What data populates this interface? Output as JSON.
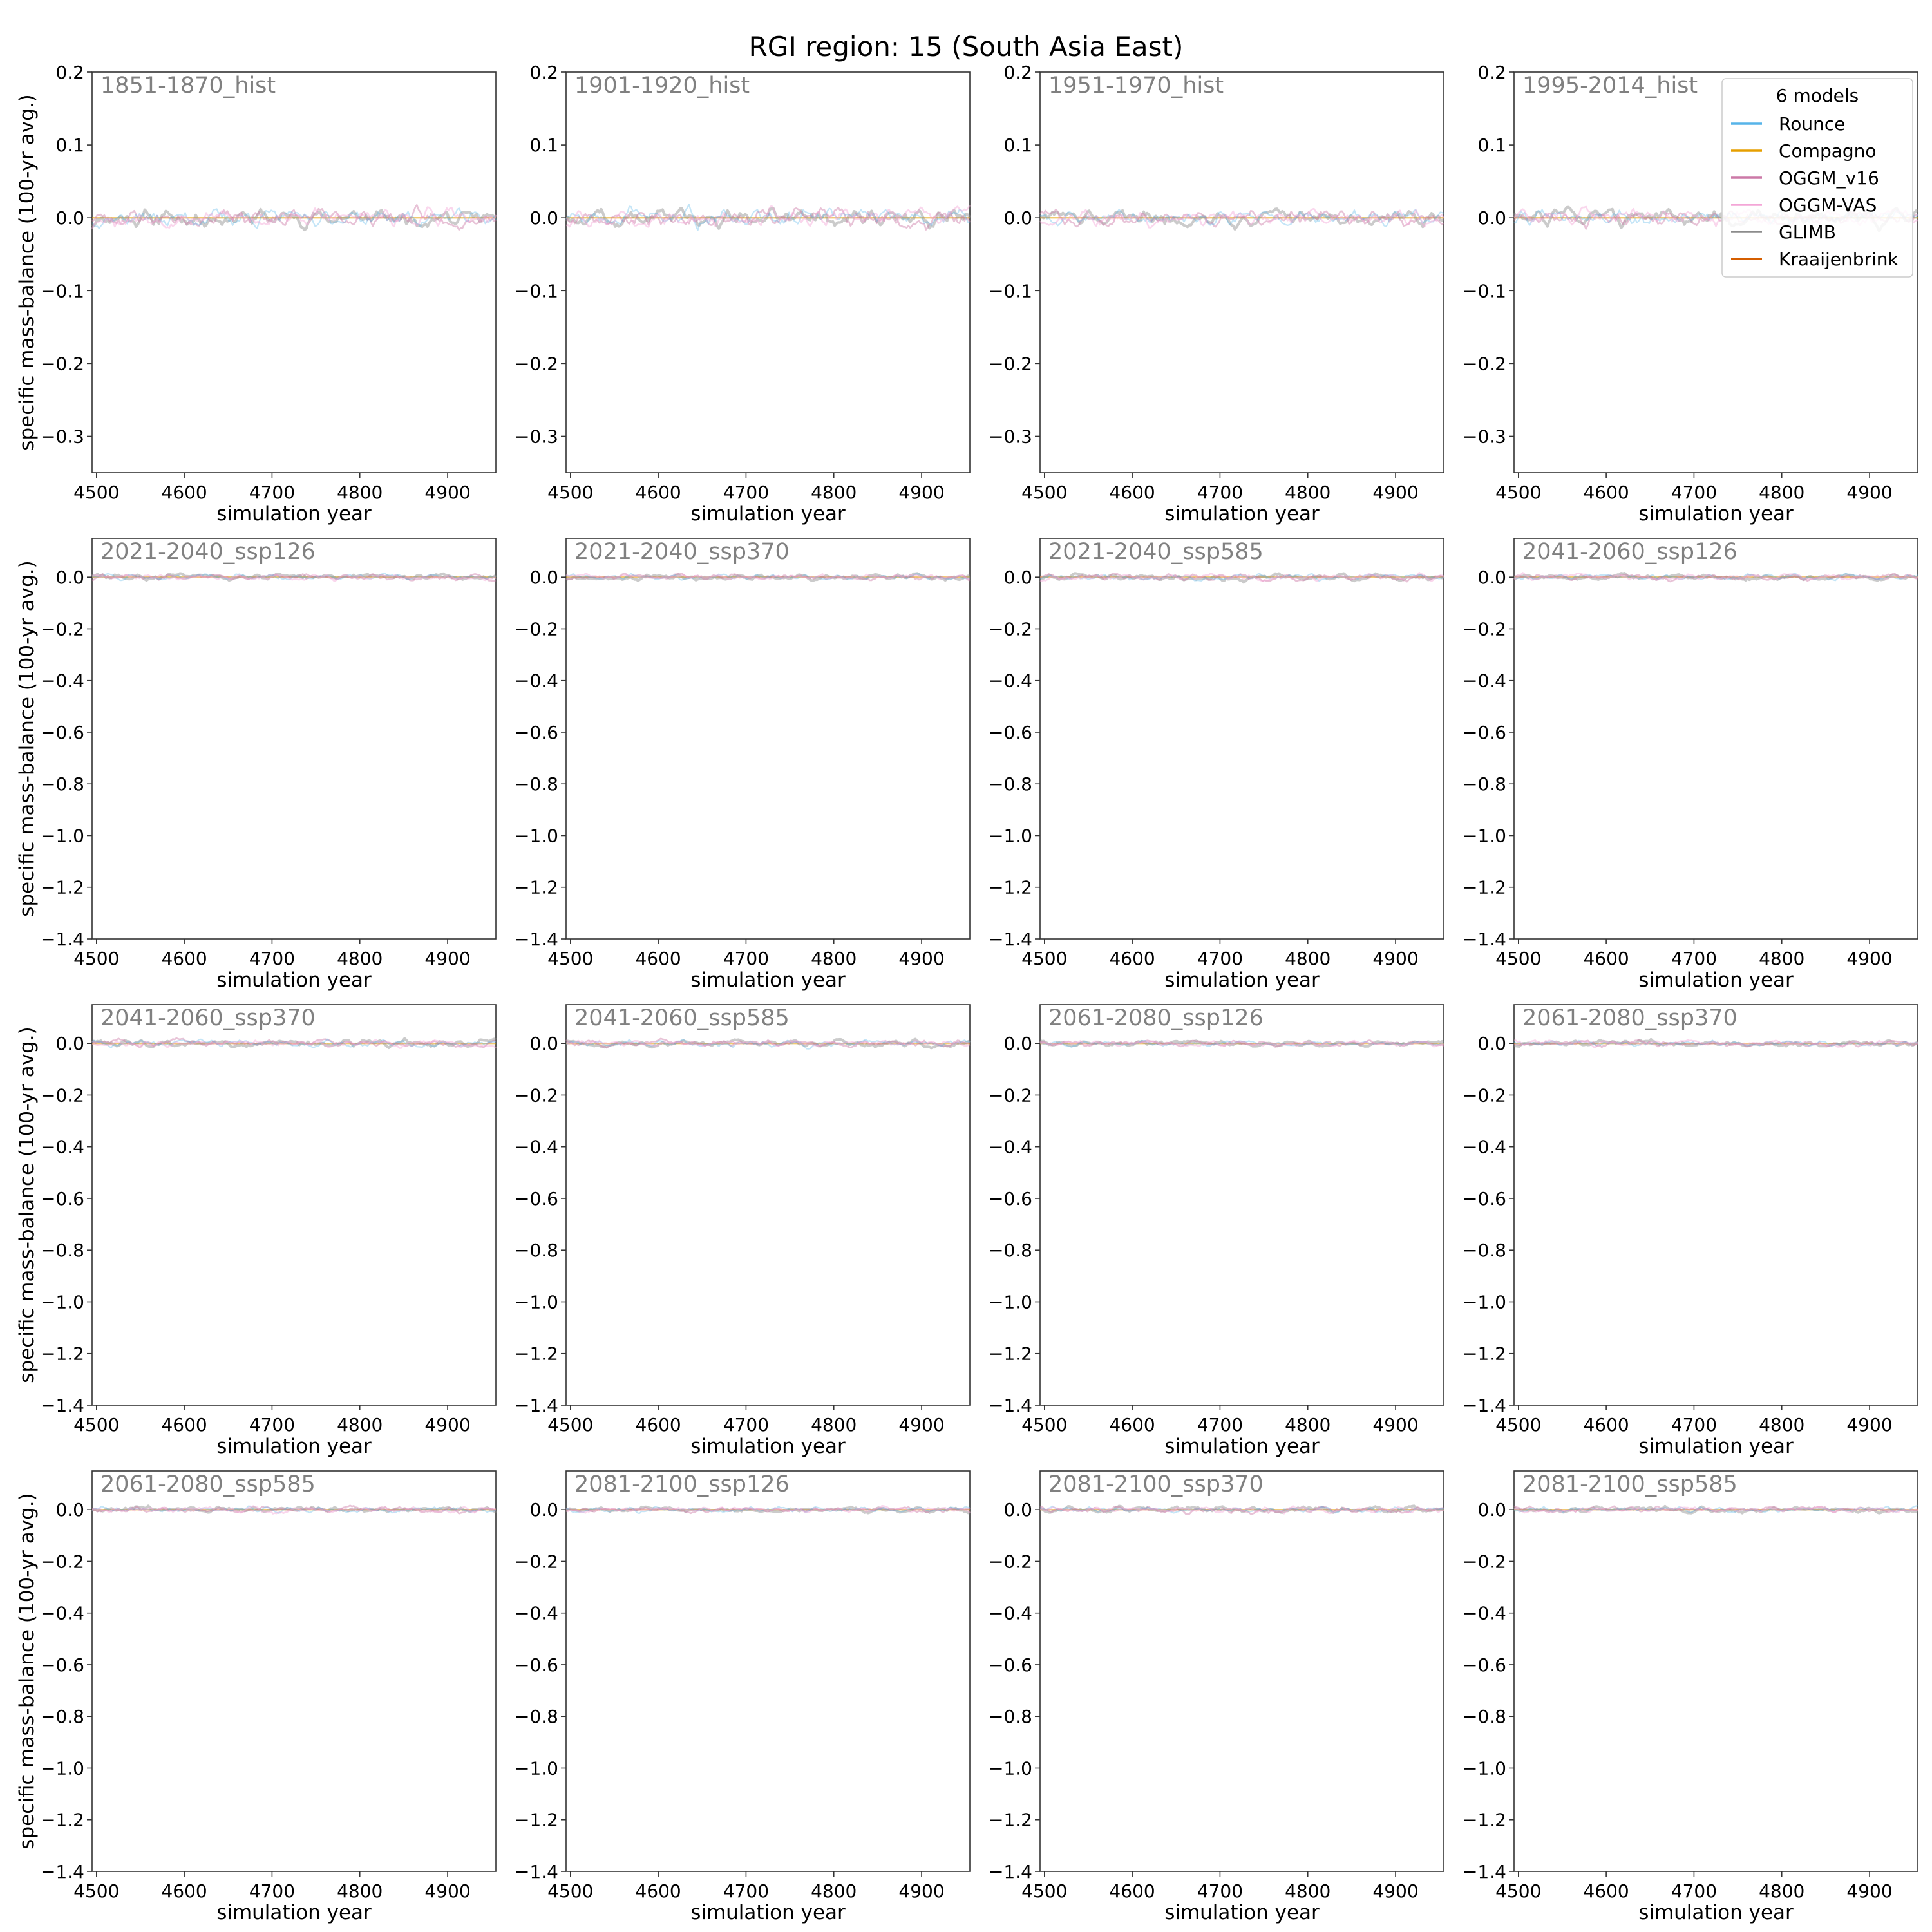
{
  "figure": {
    "title": "RGI region: 15 (South Asia East)"
  },
  "legend": {
    "title": "6 models",
    "placement": "top-right of first row, last panel"
  },
  "chart_data": {
    "type": "line",
    "layout": "4x4 small multiples",
    "xlabel": "simulation year",
    "ylabel": "specific mass-balance (100-yr avg.)",
    "xlim": [
      4495,
      4955
    ],
    "xticks": [
      4500,
      4600,
      4700,
      4800,
      4900
    ],
    "grid": false,
    "series_names": [
      "Rounce",
      "Compagno",
      "OGGM_v16",
      "OGGM-VAS",
      "GLIMB",
      "Kraaijenbrink"
    ],
    "series_colors": [
      "#56b4e9",
      "#e69f00",
      "#cc79a7",
      "#f4a6d7",
      "#8c8c8c",
      "#d55e00"
    ],
    "row_ylims": [
      [
        -0.35,
        0.2
      ],
      [
        -1.4,
        0.15
      ],
      [
        -1.4,
        0.15
      ],
      [
        -1.4,
        0.15
      ]
    ],
    "row_yticks": [
      [
        0.2,
        0.1,
        0.0,
        -0.1,
        -0.2,
        -0.3
      ],
      [
        0.0,
        -0.2,
        -0.4,
        -0.6,
        -0.8,
        -1.0,
        -1.2,
        -1.4
      ],
      [
        0.0,
        -0.2,
        -0.4,
        -0.6,
        -0.8,
        -1.0,
        -1.2,
        -1.4
      ],
      [
        0.0,
        -0.2,
        -0.4,
        -0.6,
        -0.8,
        -1.0,
        -1.2,
        -1.4
      ]
    ],
    "row_ytick_labels": [
      [
        "0.2",
        "0.1",
        "0.0",
        "−0.1",
        "−0.2",
        "−0.3"
      ],
      [
        "0.0",
        "−0.2",
        "−0.4",
        "−0.6",
        "−0.8",
        "−1.0",
        "−1.2",
        "−1.4"
      ],
      [
        "0.0",
        "−0.2",
        "−0.4",
        "−0.6",
        "−0.8",
        "−1.0",
        "−1.2",
        "−1.4"
      ],
      [
        "0.0",
        "−0.2",
        "−0.4",
        "−0.6",
        "−0.8",
        "−1.0",
        "−1.2",
        "−1.4"
      ]
    ],
    "panels": [
      {
        "label": "1851-1870_hist",
        "amplitude": 0.012
      },
      {
        "label": "1901-1920_hist",
        "amplitude": 0.013
      },
      {
        "label": "1951-1970_hist",
        "amplitude": 0.011
      },
      {
        "label": "1995-2014_hist",
        "amplitude": 0.012
      },
      {
        "label": "2021-2040_ssp126",
        "amplitude": 0.012
      },
      {
        "label": "2021-2040_ssp370",
        "amplitude": 0.011
      },
      {
        "label": "2021-2040_ssp585",
        "amplitude": 0.013
      },
      {
        "label": "2041-2060_ssp126",
        "amplitude": 0.012
      },
      {
        "label": "2041-2060_ssp370",
        "amplitude": 0.014
      },
      {
        "label": "2041-2060_ssp585",
        "amplitude": 0.013
      },
      {
        "label": "2061-2080_ssp126",
        "amplitude": 0.01
      },
      {
        "label": "2061-2080_ssp370",
        "amplitude": 0.011
      },
      {
        "label": "2061-2080_ssp585",
        "amplitude": 0.012
      },
      {
        "label": "2081-2100_ssp126",
        "amplitude": 0.011
      },
      {
        "label": "2081-2100_ssp370",
        "amplitude": 0.013
      },
      {
        "label": "2081-2100_ssp585",
        "amplitude": 0.011
      }
    ]
  }
}
